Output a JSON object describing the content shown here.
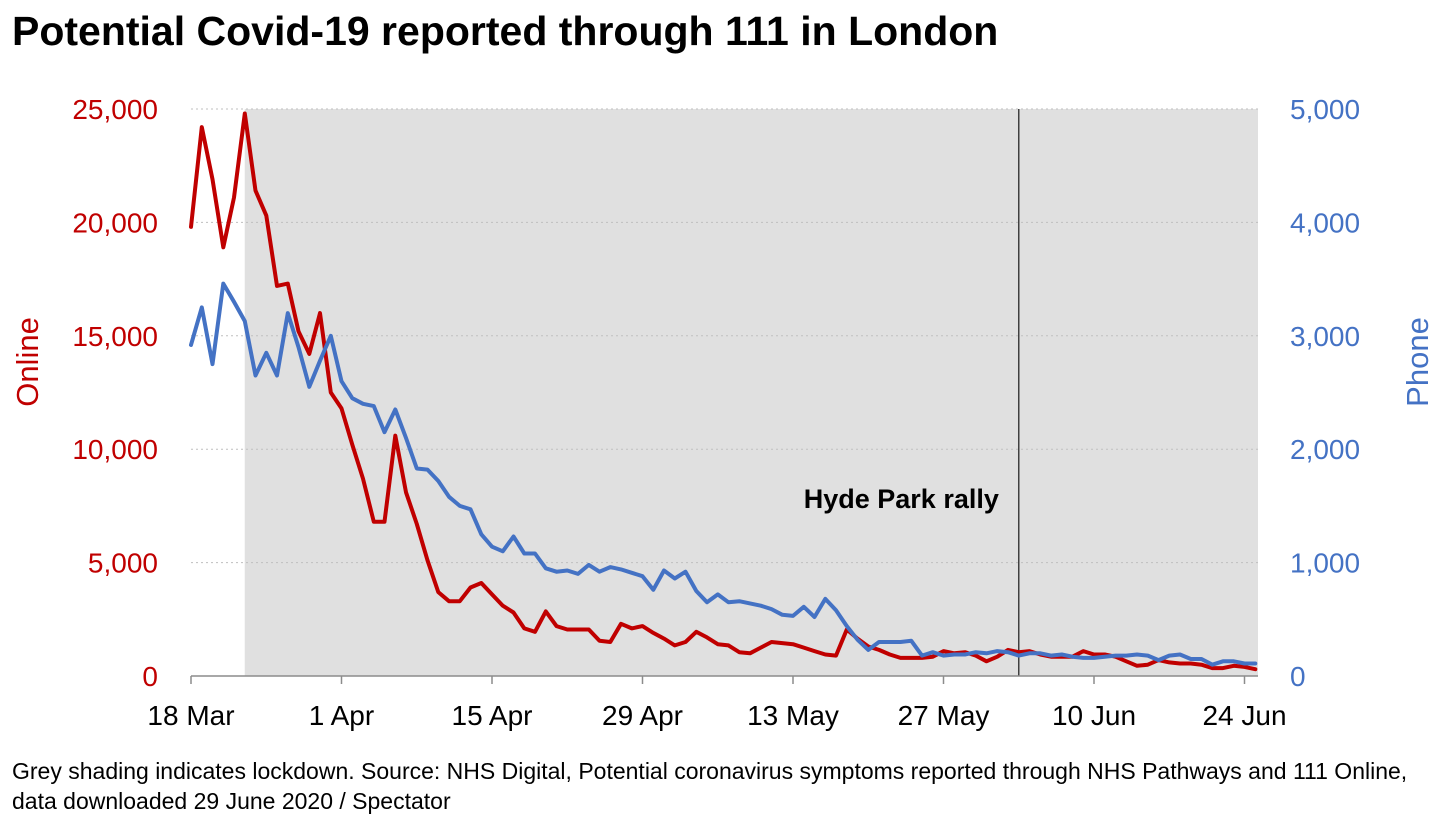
{
  "title": "Potential Covid-19 reported through 111 in London",
  "source": "Grey shading indicates lockdown. Source: NHS Digital, Potential coronavirus symptoms reported through NHS Pathways and 111 Online, data downloaded 29 June 2020 / Spectator",
  "colors": {
    "online": "#c00000",
    "phone": "#4472c4",
    "shade": "#e0e0e0",
    "grid": "#bfbfbf",
    "marker": "#404040"
  },
  "chart_data": {
    "type": "line",
    "title": "Potential Covid-19 reported through 111 in London",
    "x_unit": "days since 18 Mar 2020",
    "x_range": [
      0,
      100.5
    ],
    "xticks": [
      {
        "day": 0,
        "label": "18 Mar"
      },
      {
        "day": 14,
        "label": "1 Apr"
      },
      {
        "day": 28,
        "label": "15 Apr"
      },
      {
        "day": 42,
        "label": "29 Apr"
      },
      {
        "day": 56,
        "label": "13 May"
      },
      {
        "day": 70,
        "label": "27 May"
      },
      {
        "day": 84,
        "label": "10 Jun"
      },
      {
        "day": 98,
        "label": "24 Jun"
      }
    ],
    "left_axis": {
      "label": "Online",
      "range": [
        0,
        25000
      ],
      "ticks": [
        0,
        5000,
        10000,
        15000,
        20000,
        25000
      ],
      "tick_labels": [
        "0",
        "5,000",
        "10,000",
        "15,000",
        "20,000",
        "25,000"
      ]
    },
    "right_axis": {
      "label": "Phone",
      "range": [
        0,
        5000
      ],
      "ticks": [
        0,
        1000,
        2000,
        3000,
        4000,
        5000
      ],
      "tick_labels": [
        "0",
        "1,000",
        "2,000",
        "3,000",
        "4,000",
        "5,000"
      ]
    },
    "shaded_region": {
      "label": "lockdown",
      "start_day": 5,
      "end_day": 100.5
    },
    "annotation": {
      "label": "Hyde Park rally",
      "day": 77,
      "y_online": 7400
    },
    "series": [
      {
        "name": "Online",
        "axis": "left",
        "x": [
          0,
          1,
          2,
          3,
          4,
          5,
          6,
          7,
          8,
          9,
          10,
          11,
          12,
          13,
          14,
          15,
          16,
          17,
          18,
          19,
          20,
          21,
          22,
          23,
          24,
          25,
          26,
          27,
          28,
          29,
          30,
          31,
          32,
          33,
          34,
          35,
          36,
          37,
          38,
          39,
          40,
          41,
          42,
          43,
          44,
          45,
          46,
          47,
          48,
          49,
          50,
          51,
          52,
          53,
          54,
          55,
          56,
          57,
          58,
          59,
          60,
          61,
          62,
          63,
          64,
          65,
          66,
          67,
          68,
          69,
          70,
          71,
          72,
          73,
          74,
          75,
          76,
          77,
          78,
          79,
          80,
          81,
          82,
          83,
          84,
          85,
          86,
          87,
          88,
          89,
          90,
          91,
          92,
          93,
          94,
          95,
          96,
          97,
          98,
          99
        ],
        "values": [
          19800,
          24200,
          21900,
          18900,
          21100,
          24800,
          21400,
          20300,
          17200,
          17300,
          15200,
          14200,
          16000,
          12500,
          11800,
          10200,
          8700,
          6800,
          6800,
          10600,
          8100,
          6700,
          5100,
          3700,
          3300,
          3300,
          3900,
          4100,
          3600,
          3100,
          2800,
          2100,
          1950,
          2850,
          2200,
          2050,
          2050,
          2050,
          1550,
          1500,
          2300,
          2100,
          2200,
          1900,
          1650,
          1350,
          1500,
          1950,
          1700,
          1400,
          1350,
          1050,
          1000,
          1250,
          1500,
          1450,
          1400,
          1250,
          1100,
          950,
          900,
          2050,
          1650,
          1300,
          1150,
          950,
          800,
          800,
          800,
          850,
          1100,
          1000,
          1050,
          900,
          650,
          850,
          1150,
          1050,
          1100,
          950,
          850,
          850,
          850,
          1100,
          950,
          950,
          850,
          650,
          450,
          500,
          700,
          600,
          550,
          550,
          500,
          350,
          350,
          450,
          400,
          300
        ]
      },
      {
        "name": "Phone",
        "axis": "right",
        "x": [
          0,
          1,
          2,
          3,
          4,
          5,
          6,
          7,
          8,
          9,
          10,
          11,
          12,
          13,
          14,
          15,
          16,
          17,
          18,
          19,
          20,
          21,
          22,
          23,
          24,
          25,
          26,
          27,
          28,
          29,
          30,
          31,
          32,
          33,
          34,
          35,
          36,
          37,
          38,
          39,
          40,
          41,
          42,
          43,
          44,
          45,
          46,
          47,
          48,
          49,
          50,
          51,
          52,
          53,
          54,
          55,
          56,
          57,
          58,
          59,
          60,
          61,
          62,
          63,
          64,
          65,
          66,
          67,
          68,
          69,
          70,
          71,
          72,
          73,
          74,
          75,
          76,
          77,
          78,
          79,
          80,
          81,
          82,
          83,
          84,
          85,
          86,
          87,
          88,
          89,
          90,
          91,
          92,
          93,
          94,
          95,
          96,
          97,
          98,
          99
        ],
        "values": [
          2920,
          3250,
          2750,
          3460,
          3300,
          3130,
          2650,
          2850,
          2650,
          3200,
          2900,
          2550,
          2780,
          3000,
          2600,
          2450,
          2400,
          2380,
          2150,
          2350,
          2100,
          1830,
          1820,
          1720,
          1580,
          1500,
          1470,
          1250,
          1140,
          1100,
          1230,
          1080,
          1080,
          950,
          920,
          930,
          900,
          980,
          920,
          960,
          940,
          910,
          880,
          760,
          930,
          860,
          920,
          750,
          650,
          720,
          650,
          660,
          640,
          620,
          590,
          540,
          530,
          610,
          520,
          680,
          580,
          440,
          320,
          230,
          300,
          300,
          300,
          310,
          180,
          210,
          180,
          190,
          190,
          210,
          200,
          220,
          210,
          180,
          200,
          200,
          180,
          190,
          170,
          160,
          160,
          170,
          180,
          180,
          190,
          180,
          140,
          180,
          190,
          150,
          150,
          100,
          130,
          130,
          110,
          110
        ]
      }
    ]
  }
}
